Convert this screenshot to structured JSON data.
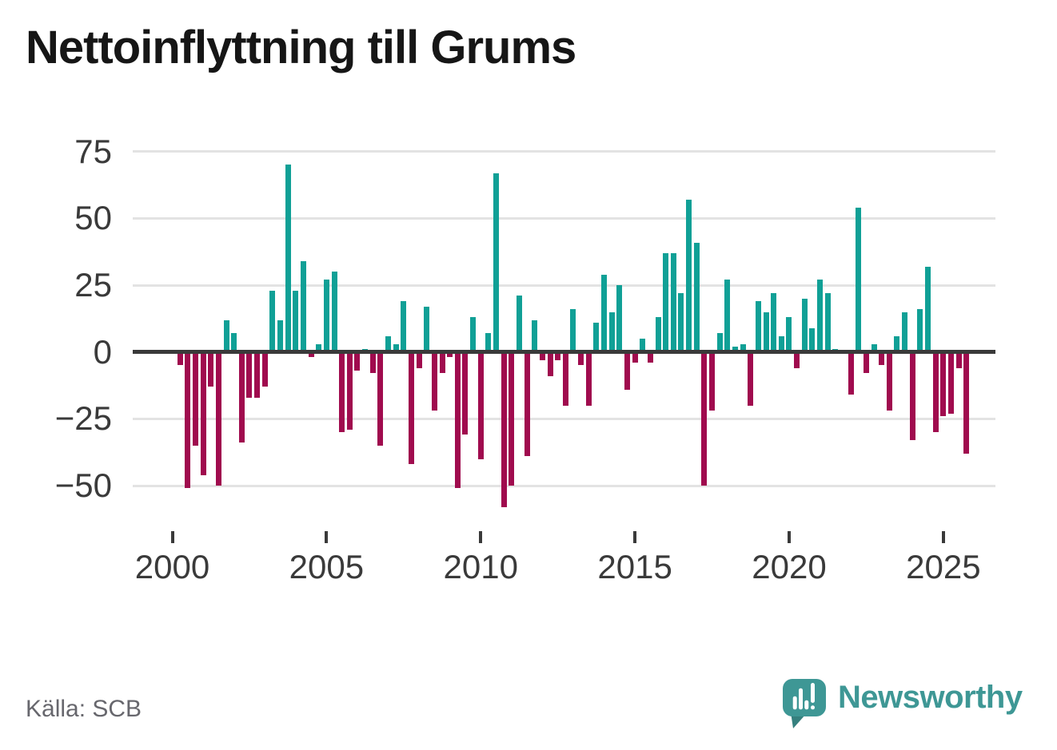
{
  "title": "Nettoinflyttning till Grums",
  "source": "Källa: SCB",
  "brand": {
    "name": "Newsworthy"
  },
  "colors": {
    "positive": "#10a096",
    "negative": "#a00b4e",
    "grid": "#e3e3e3",
    "zero_line": "#3a3a3a",
    "axis_text": "#3a3a3a",
    "title_text": "#161616",
    "source_text": "#67676d",
    "brand_teal": "#3e9795",
    "brand_teal_dark": "#35807e"
  },
  "y_axis": {
    "tick_labels": [
      "75",
      "50",
      "25",
      "0",
      "−25",
      "−50"
    ],
    "tick_values": [
      75,
      50,
      25,
      0,
      -25,
      -50
    ]
  },
  "x_axis": {
    "tick_labels": [
      "2000",
      "2005",
      "2010",
      "2015",
      "2020",
      "2025"
    ],
    "quarters_per_tick": 20
  },
  "chart_data": {
    "type": "bar",
    "title": "Nettoinflyttning till Grums",
    "frequency": "quarterly",
    "start": "2000Q1",
    "end": "2025Q4",
    "ylim": [
      -60,
      80
    ],
    "grid": true,
    "positive_color": "#10a096",
    "negative_color": "#a00b4e",
    "values": [
      0,
      -5,
      -51,
      -35,
      -46,
      -13,
      -50,
      12,
      7,
      -34,
      -17,
      -17,
      -13,
      23,
      12,
      70,
      23,
      34,
      -2,
      3,
      27,
      30,
      -30,
      -29,
      -7,
      1,
      -8,
      -35,
      6,
      3,
      19,
      -42,
      -6,
      17,
      -22,
      -8,
      -2,
      -51,
      -31,
      13,
      -40,
      7,
      67,
      -58,
      -50,
      21,
      -39,
      12,
      -3,
      -9,
      -3,
      -20,
      16,
      -5,
      -20,
      11,
      29,
      15,
      25,
      -14,
      -4,
      5,
      -4,
      13,
      37,
      37,
      22,
      57,
      41,
      -50,
      -22,
      7,
      27,
      2,
      3,
      -20,
      19,
      15,
      22,
      6,
      13,
      -6,
      20,
      9,
      27,
      22,
      1,
      0,
      -16,
      54,
      -8,
      3,
      -5,
      -22,
      6,
      15,
      -33,
      16,
      32,
      -30,
      -24,
      -23,
      -6,
      -38
    ]
  }
}
